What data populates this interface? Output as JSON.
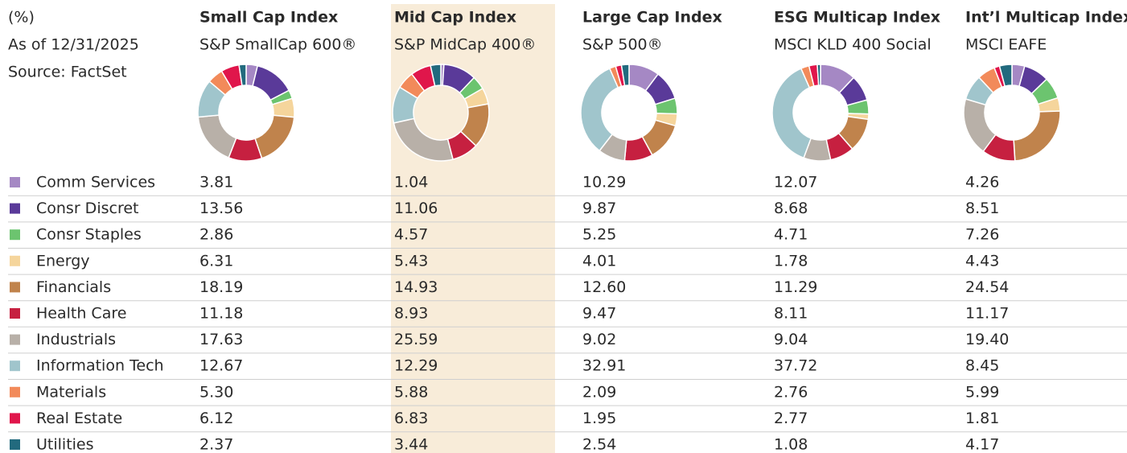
{
  "header": [
    "(%)",
    "As of 12/31/2025",
    "Source: FactSet"
  ],
  "sectors": [
    {
      "name": "Comm Services",
      "color": "#a588c4"
    },
    {
      "name": "Consr Discret",
      "color": "#5a3a99"
    },
    {
      "name": "Consr Staples",
      "color": "#6cc46f"
    },
    {
      "name": "Energy",
      "color": "#f5d59c"
    },
    {
      "name": "Financials",
      "color": "#c0834c"
    },
    {
      "name": "Health Care",
      "color": "#c62040"
    },
    {
      "name": "Industrials",
      "color": "#b8b0a8"
    },
    {
      "name": "Information Tech",
      "color": "#a0c5cc"
    },
    {
      "name": "Materials",
      "color": "#f28a5a"
    },
    {
      "name": "Real Estate",
      "color": "#e0164b"
    },
    {
      "name": "Utilities",
      "color": "#226a7e"
    }
  ],
  "columns": [
    {
      "title": "Small Cap Index",
      "index": "S&P SmallCap 600®",
      "highlight": false,
      "values": [
        "3.81",
        "13.56",
        "2.86",
        "6.31",
        "18.19",
        "11.18",
        "17.63",
        "12.67",
        "5.30",
        "6.12",
        "2.37"
      ]
    },
    {
      "title": "Mid Cap Index",
      "index": "S&P MidCap 400®",
      "highlight": true,
      "values": [
        "1.04",
        "11.06",
        "4.57",
        "5.43",
        "14.93",
        "8.93",
        "25.59",
        "12.29",
        "5.88",
        "6.83",
        "3.44"
      ]
    },
    {
      "title": "Large Cap Index",
      "index": "S&P 500®",
      "highlight": false,
      "values": [
        "10.29",
        "9.87",
        "5.25",
        "4.01",
        "12.60",
        "9.47",
        "9.02",
        "32.91",
        "2.09",
        "1.95",
        "2.54"
      ]
    },
    {
      "title": "ESG Multicap Index",
      "index": "MSCI KLD 400 Social",
      "highlight": false,
      "values": [
        "12.07",
        "8.68",
        "4.71",
        "1.78",
        "11.29",
        "8.11",
        "9.04",
        "37.72",
        "2.76",
        "2.77",
        "1.08"
      ]
    },
    {
      "title": "Int’l Multicap Index",
      "index": "MSCI EAFE",
      "highlight": false,
      "values": [
        "4.26",
        "8.51",
        "7.26",
        "4.43",
        "24.54",
        "11.17",
        "19.40",
        "8.45",
        "5.99",
        "1.81",
        "4.17"
      ]
    }
  ]
}
